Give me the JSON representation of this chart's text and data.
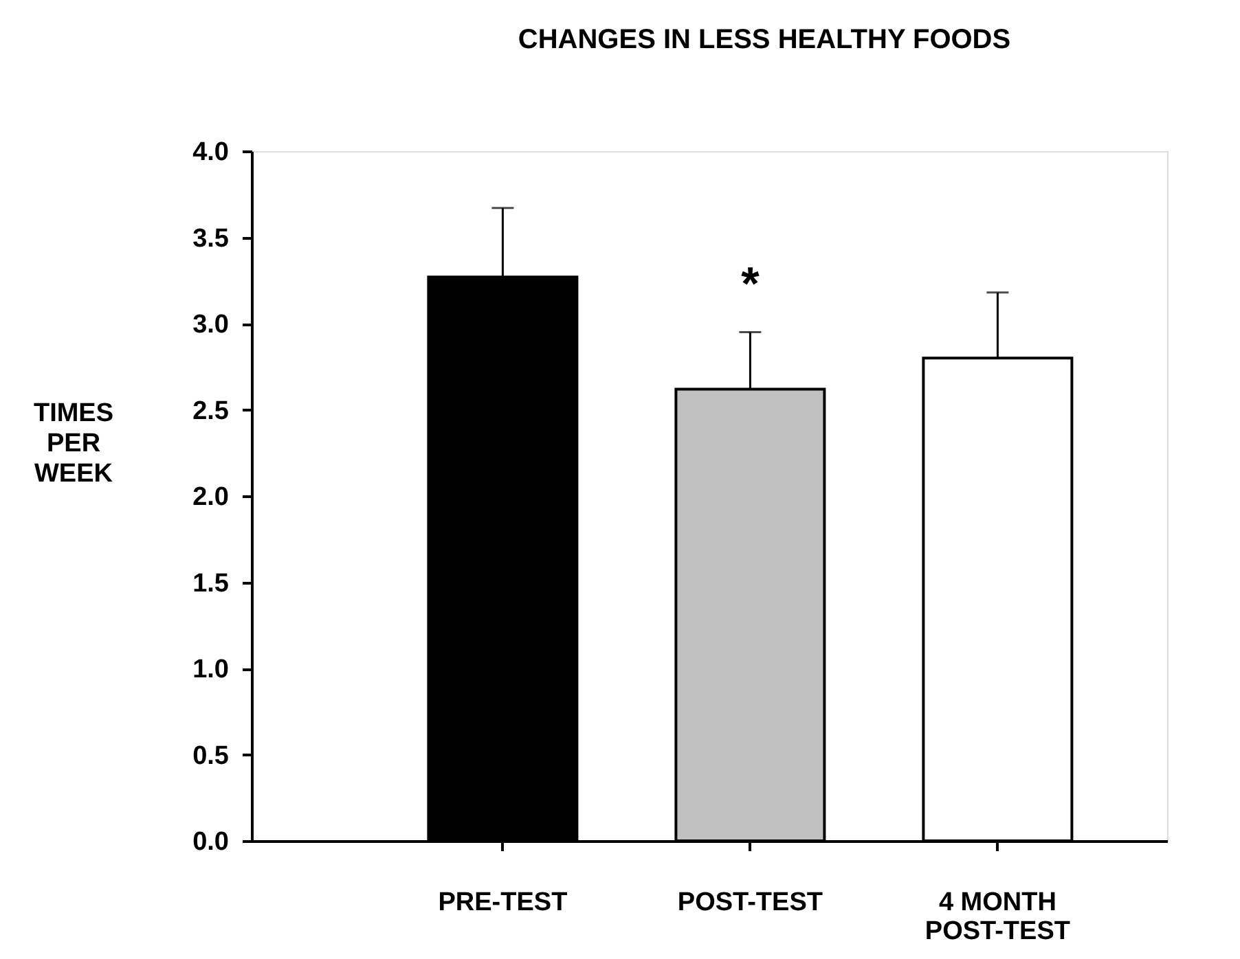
{
  "chart_data": {
    "type": "bar",
    "title": "CHANGES IN LESS HEALTHY FOODS",
    "ylabel": "TIMES PER WEEK",
    "categories": [
      "PRE-TEST",
      "POST-TEST",
      "4 MONTH POST-TEST"
    ],
    "values": [
      3.27,
      2.62,
      2.8
    ],
    "colors": [
      "#000000",
      "#c0c0c0",
      "#ffffff"
    ],
    "errors": [
      [
        3.27,
        3.67
      ],
      [
        2.62,
        2.95
      ],
      [
        2.8,
        3.18
      ]
    ],
    "annotations": [
      {
        "text": "*",
        "x": "POST-TEST",
        "y": 2.95
      }
    ],
    "ylim": [
      0,
      4
    ],
    "yticks": [
      {
        "value": 0,
        "label": "0.0"
      },
      0.5,
      {
        "value": 1,
        "label": "1.0"
      },
      1.5,
      {
        "value": 2,
        "label": "2.0"
      },
      2.5,
      {
        "value": 3,
        "label": "3.0"
      },
      3.5,
      {
        "value": 4,
        "label": "4.0"
      }
    ],
    "grid": false
  }
}
